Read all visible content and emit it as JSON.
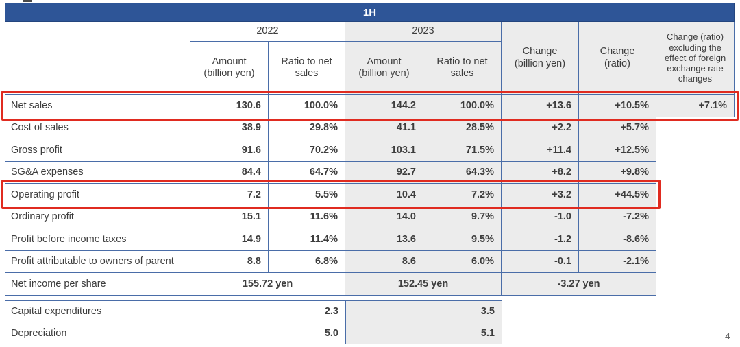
{
  "slide": {
    "page_number": "4",
    "period_header": "1H",
    "columns": {
      "year_2022": "2022",
      "year_2023": "2023",
      "amount_2022": "Amount\n(billion yen)",
      "ratio_2022": "Ratio to net\nsales",
      "amount_2023": "Amount\n(billion yen)",
      "ratio_2023": "Ratio to net\nsales",
      "change_amount": "Change\n(billion yen)",
      "change_ratio": "Change\n(ratio)",
      "change_fx": "Change (ratio)\nexcluding the\neffect of foreign\nexchange rate\nchanges"
    },
    "rows": [
      {
        "label": "Net sales",
        "a22": "130.6",
        "r22": "100.0%",
        "a23": "144.2",
        "r23": "100.0%",
        "chg": "+13.6",
        "chgr": "+10.5%",
        "fx": "+7.1%"
      },
      {
        "label": "Cost of sales",
        "a22": "38.9",
        "r22": "29.8%",
        "a23": "41.1",
        "r23": "28.5%",
        "chg": "+2.2",
        "chgr": "+5.7%"
      },
      {
        "label": "Gross profit",
        "a22": "91.6",
        "r22": "70.2%",
        "a23": "103.1",
        "r23": "71.5%",
        "chg": "+11.4",
        "chgr": "+12.5%"
      },
      {
        "label": "SG&A expenses",
        "a22": "84.4",
        "r22": "64.7%",
        "a23": "92.7",
        "r23": "64.3%",
        "chg": "+8.2",
        "chgr": "+9.8%"
      },
      {
        "label": "Operating profit",
        "a22": "7.2",
        "r22": "5.5%",
        "a23": "10.4",
        "r23": "7.2%",
        "chg": "+3.2",
        "chgr": "+44.5%"
      },
      {
        "label": "Ordinary profit",
        "a22": "15.1",
        "r22": "11.6%",
        "a23": "14.0",
        "r23": "9.7%",
        "chg": "-1.0",
        "chgr": "-7.2%"
      },
      {
        "label": "Profit before income taxes",
        "a22": "14.9",
        "r22": "11.4%",
        "a23": "13.6",
        "r23": "9.5%",
        "chg": "-1.2",
        "chgr": "-8.6%"
      },
      {
        "label": "Profit attributable to owners of parent",
        "a22": "8.8",
        "r22": "6.8%",
        "a23": "8.6",
        "r23": "6.0%",
        "chg": "-0.1",
        "chgr": "-2.1%"
      }
    ],
    "per_share": {
      "label": "Net income per share",
      "y2022": "155.72 yen",
      "y2023": "152.45 yen",
      "change": "-3.27 yen"
    },
    "capex_table": [
      {
        "label": "Capital expenditures",
        "y2022": "2.3",
        "y2023": "3.5"
      },
      {
        "label": "Depreciation",
        "y2022": "5.0",
        "y2023": "5.1"
      }
    ]
  }
}
